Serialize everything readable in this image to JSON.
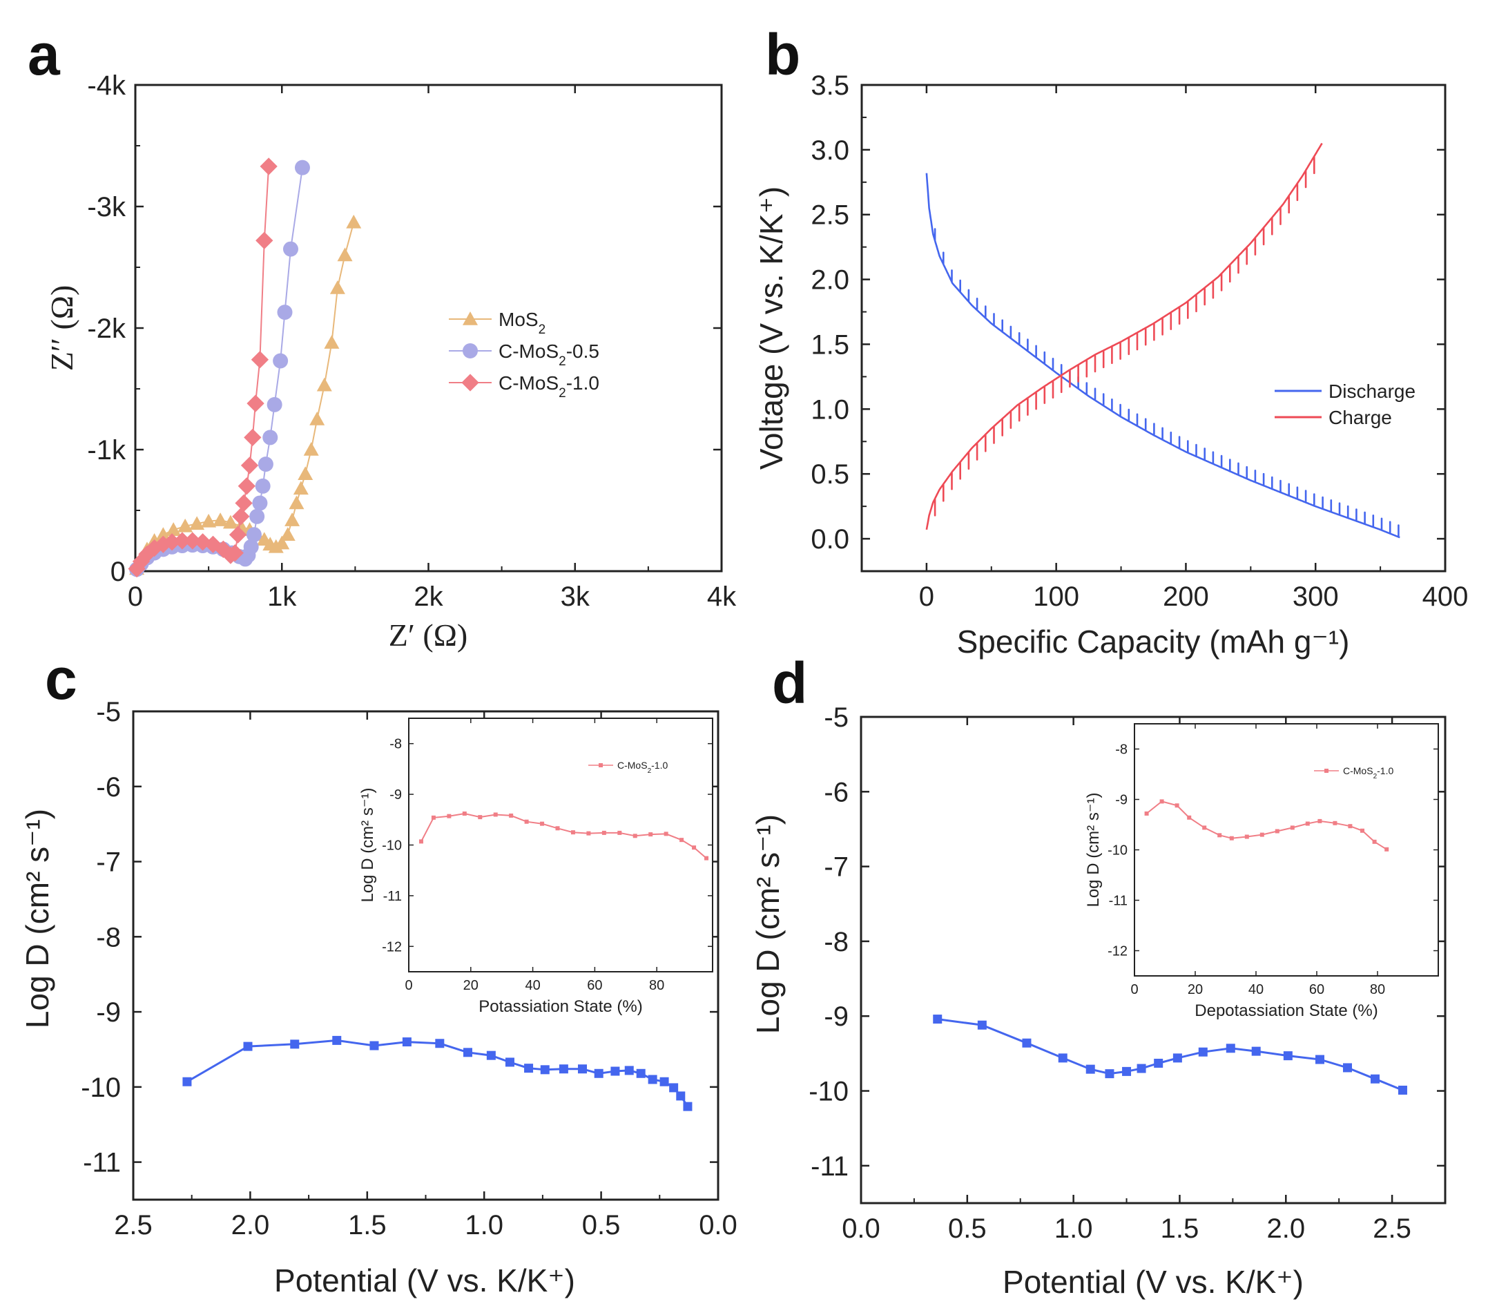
{
  "figure": {
    "panels": [
      "a",
      "b",
      "c",
      "d"
    ]
  },
  "colors": {
    "axis": "#222222",
    "mos2": "#E8B87A",
    "c_mos2_05": "#A9A9E6",
    "c_mos2_10": "#F07E86",
    "discharge": "#4466EE",
    "charge": "#EE4A55",
    "main_series": "#4466EE",
    "inset_series": "#F07E86"
  },
  "chart_data": [
    {
      "panel": "a",
      "type": "scatter",
      "title": "",
      "xlabel": "Z′ (Ω)",
      "ylabel": "Z′′ (Ω)",
      "xlim": [
        0,
        4000
      ],
      "ylim": [
        0,
        -4000
      ],
      "xticks": [
        0,
        1000,
        2000,
        3000,
        4000
      ],
      "xtick_labels": [
        "0",
        "1k",
        "2k",
        "3k",
        "4k"
      ],
      "yticks": [
        0,
        -1000,
        -2000,
        -3000,
        -4000
      ],
      "ytick_labels": [
        "0",
        "-1k",
        "-2k",
        "-3k",
        "-4k"
      ],
      "legend_position": "center-right",
      "series": [
        {
          "name": "MoS",
          "sub": "2",
          "suffix": "",
          "marker": "triangle",
          "colorKey": "mos2",
          "x": [
            10,
            40,
            80,
            130,
            190,
            260,
            340,
            420,
            500,
            580,
            650,
            720,
            780,
            830,
            880,
            920,
            960,
            1000,
            1040,
            1070,
            1100,
            1130,
            1160,
            1200,
            1240,
            1290,
            1340,
            1380,
            1430,
            1490
          ],
          "y": [
            -20,
            -100,
            -180,
            -250,
            -300,
            -340,
            -370,
            -390,
            -410,
            -420,
            -400,
            -370,
            -340,
            -300,
            -260,
            -220,
            -200,
            -230,
            -300,
            -420,
            -560,
            -680,
            -800,
            -1000,
            -1250,
            -1530,
            -1880,
            -2330,
            -2600,
            -2870
          ]
        },
        {
          "name": "C-MoS",
          "sub": "2",
          "suffix": "-0.5",
          "marker": "circle",
          "colorKey": "c_mos2_05",
          "x": [
            10,
            40,
            80,
            130,
            190,
            250,
            320,
            390,
            460,
            530,
            600,
            660,
            710,
            750,
            770,
            790,
            810,
            830,
            850,
            870,
            890,
            920,
            950,
            990,
            1020,
            1060,
            1140
          ],
          "y": [
            -15,
            -60,
            -110,
            -150,
            -180,
            -200,
            -210,
            -215,
            -210,
            -200,
            -180,
            -150,
            -120,
            -100,
            -130,
            -200,
            -300,
            -450,
            -560,
            -700,
            -880,
            -1100,
            -1370,
            -1730,
            -2130,
            -2650,
            -3320
          ]
        },
        {
          "name": "C-MoS",
          "sub": "2",
          "suffix": "-1.0",
          "marker": "diamond",
          "colorKey": "c_mos2_10",
          "x": [
            10,
            40,
            80,
            130,
            190,
            250,
            320,
            390,
            460,
            530,
            600,
            650,
            680,
            700,
            720,
            740,
            760,
            780,
            800,
            820,
            850,
            880,
            910
          ],
          "y": [
            -20,
            -80,
            -140,
            -190,
            -220,
            -240,
            -250,
            -250,
            -240,
            -220,
            -180,
            -130,
            -150,
            -300,
            -450,
            -560,
            -700,
            -870,
            -1100,
            -1380,
            -1740,
            -2720,
            -3330
          ]
        }
      ]
    },
    {
      "panel": "b",
      "type": "line",
      "title": "",
      "xlabel": "Specific Capacity (mAh g⁻¹)",
      "ylabel": "Voltage (V vs. K/K⁺)",
      "xlim": [
        -50,
        400
      ],
      "ylim": [
        -0.25,
        3.5
      ],
      "xticks": [
        0,
        100,
        200,
        300,
        400
      ],
      "xtick_labels": [
        "0",
        "100",
        "200",
        "300",
        "400"
      ],
      "yticks": [
        0.0,
        0.5,
        1.0,
        1.5,
        2.0,
        2.5,
        3.0,
        3.5
      ],
      "ytick_labels": [
        "0.0",
        "0.5",
        "1.0",
        "1.5",
        "2.0",
        "2.5",
        "3.0",
        "3.5"
      ],
      "legend_position": "center-right",
      "series": [
        {
          "name": "Discharge",
          "colorKey": "discharge",
          "relaxation": "up",
          "x": [
            0,
            2,
            5,
            10,
            20,
            35,
            50,
            75,
            100,
            125,
            150,
            175,
            200,
            225,
            250,
            275,
            300,
            325,
            350,
            365
          ],
          "y": [
            2.82,
            2.55,
            2.35,
            2.18,
            1.97,
            1.8,
            1.66,
            1.47,
            1.28,
            1.1,
            0.94,
            0.8,
            0.67,
            0.56,
            0.45,
            0.35,
            0.25,
            0.16,
            0.07,
            0.01
          ]
        },
        {
          "name": "Charge",
          "colorKey": "charge",
          "relaxation": "down",
          "x": [
            0,
            2,
            5,
            10,
            20,
            35,
            50,
            70,
            90,
            110,
            130,
            150,
            175,
            200,
            225,
            250,
            275,
            290,
            305
          ],
          "y": [
            0.07,
            0.18,
            0.28,
            0.38,
            0.52,
            0.7,
            0.85,
            1.03,
            1.17,
            1.3,
            1.42,
            1.52,
            1.66,
            1.82,
            2.02,
            2.28,
            2.58,
            2.8,
            3.05
          ]
        }
      ]
    },
    {
      "panel": "c",
      "type": "line",
      "title": "",
      "xlabel": "Potential (V vs. K/K⁺)",
      "ylabel": "Log D (cm² s⁻¹)",
      "xlim": [
        2.5,
        0.0
      ],
      "ylim": [
        -11.5,
        -5
      ],
      "xticks": [
        2.5,
        2.0,
        1.5,
        1.0,
        0.5,
        0.0
      ],
      "xtick_labels": [
        "2.5",
        "2.0",
        "1.5",
        "1.0",
        "0.5",
        "0.0"
      ],
      "yticks": [
        -5,
        -6,
        -7,
        -8,
        -9,
        -10,
        -11
      ],
      "ytick_labels": [
        "-5",
        "-6",
        "-7",
        "-8",
        "-9",
        "-10",
        "-11"
      ],
      "series": [
        {
          "name": "C-MoS2-1.0",
          "colorKey": "main_series",
          "x": [
            2.27,
            2.01,
            1.81,
            1.63,
            1.47,
            1.33,
            1.19,
            1.07,
            0.97,
            0.89,
            0.81,
            0.74,
            0.66,
            0.58,
            0.51,
            0.44,
            0.38,
            0.33,
            0.28,
            0.23,
            0.19,
            0.16,
            0.13
          ],
          "y": [
            -9.93,
            -9.46,
            -9.43,
            -9.38,
            -9.45,
            -9.4,
            -9.42,
            -9.54,
            -9.58,
            -9.67,
            -9.75,
            -9.77,
            -9.76,
            -9.76,
            -9.82,
            -9.79,
            -9.78,
            -9.82,
            -9.9,
            -9.93,
            -10.01,
            -10.12,
            -10.26
          ]
        }
      ],
      "inset": {
        "type": "line",
        "xlabel": "Potassiation State (%)",
        "ylabel": "Log D (cm² s⁻¹)",
        "xlim": [
          0,
          98
        ],
        "ylim": [
          -12.5,
          -7.5
        ],
        "xticks": [
          0,
          20,
          40,
          60,
          80
        ],
        "xtick_labels": [
          "0",
          "20",
          "40",
          "60",
          "80"
        ],
        "yticks": [
          -8,
          -9,
          -10,
          -11,
          -12
        ],
        "ytick_labels": [
          "-8",
          "-9",
          "-10",
          "-11",
          "-12"
        ],
        "legend_position": "top-right",
        "series": [
          {
            "name": "C-MoS",
            "sub": "2",
            "suffix": "-1.0",
            "colorKey": "inset_series",
            "x": [
              4,
              8,
              13,
              18,
              23,
              28,
              33,
              38,
              43,
              48,
              53,
              58,
              63,
              68,
              73,
              78,
              83,
              88,
              92,
              96
            ],
            "y": [
              -9.93,
              -9.46,
              -9.43,
              -9.38,
              -9.45,
              -9.4,
              -9.42,
              -9.54,
              -9.58,
              -9.67,
              -9.75,
              -9.77,
              -9.76,
              -9.76,
              -9.82,
              -9.79,
              -9.78,
              -9.9,
              -10.05,
              -10.26
            ]
          }
        ]
      }
    },
    {
      "panel": "d",
      "type": "line",
      "title": "",
      "xlabel": "Potential (V vs. K/K⁺)",
      "ylabel": "Log D (cm² s⁻¹)",
      "xlim": [
        0.0,
        2.75
      ],
      "ylim": [
        -11.5,
        -5
      ],
      "xticks": [
        0.0,
        0.5,
        1.0,
        1.5,
        2.0,
        2.5
      ],
      "xtick_labels": [
        "0.0",
        "0.5",
        "1.0",
        "1.5",
        "2.0",
        "2.5"
      ],
      "yticks": [
        -5,
        -6,
        -7,
        -8,
        -9,
        -10,
        -11
      ],
      "ytick_labels": [
        "-5",
        "-6",
        "-7",
        "-8",
        "-9",
        "-10",
        "-11"
      ],
      "series": [
        {
          "name": "C-MoS2-1.0",
          "colorKey": "main_series",
          "x": [
            0.36,
            0.57,
            0.78,
            0.95,
            1.08,
            1.17,
            1.25,
            1.32,
            1.4,
            1.49,
            1.61,
            1.74,
            1.86,
            2.01,
            2.16,
            2.29,
            2.42,
            2.55
          ],
          "y": [
            -9.04,
            -9.12,
            -9.36,
            -9.56,
            -9.71,
            -9.77,
            -9.74,
            -9.7,
            -9.63,
            -9.56,
            -9.48,
            -9.43,
            -9.47,
            -9.53,
            -9.58,
            -9.69,
            -9.84,
            -9.99
          ]
        }
      ],
      "inset": {
        "type": "line",
        "xlabel": "Depotassiation State (%)",
        "ylabel": "Log D (cm² s⁻¹)",
        "xlim": [
          0,
          100
        ],
        "ylim": [
          -12.5,
          -7.5
        ],
        "xticks": [
          0,
          20,
          40,
          60,
          80
        ],
        "xtick_labels": [
          "0",
          "20",
          "40",
          "60",
          "80"
        ],
        "yticks": [
          -8,
          -9,
          -10,
          -11,
          -12
        ],
        "ytick_labels": [
          "-8",
          "-9",
          "-10",
          "-11",
          "-12"
        ],
        "legend_position": "top-right",
        "series": [
          {
            "name": "C-MoS",
            "sub": "2",
            "suffix": "-1.0",
            "colorKey": "inset_series",
            "x": [
              4,
              9,
              14,
              18,
              23,
              28,
              32,
              37,
              42,
              47,
              52,
              57,
              61,
              66,
              71,
              75,
              79,
              83
            ],
            "y": [
              -9.28,
              -9.04,
              -9.12,
              -9.36,
              -9.56,
              -9.71,
              -9.77,
              -9.74,
              -9.7,
              -9.63,
              -9.56,
              -9.48,
              -9.43,
              -9.47,
              -9.53,
              -9.62,
              -9.84,
              -9.99
            ]
          }
        ]
      }
    }
  ]
}
